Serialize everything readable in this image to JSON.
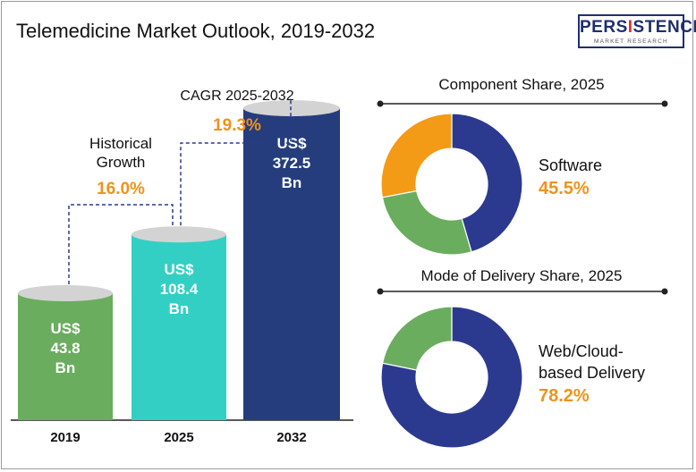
{
  "title": "Telemedicine Market Outlook, 2019-2032",
  "logo": {
    "brand_pre": "PERS",
    "brand_hl": "I",
    "brand_post": "STENCE",
    "tagline": "MARKET RESEARCH"
  },
  "colors": {
    "bar_2019": "#6aad5e",
    "bar_2025": "#33cfc4",
    "bar_2032": "#253d7d",
    "bar_top": "#d3d3d3",
    "accent": "#f0921a",
    "software": "#2b3a8f",
    "donut_green": "#6aad5e",
    "donut_orange": "#f39a16",
    "web": "#2b3a8f"
  },
  "chart_data": [
    {
      "type": "bar",
      "categories": [
        "2019",
        "2025",
        "2032"
      ],
      "values": [
        43.8,
        108.4,
        372.5
      ],
      "value_labels": [
        [
          "US$",
          "43.8",
          "Bn"
        ],
        [
          "US$",
          "108.4",
          "Bn"
        ],
        [
          "US$",
          "372.5",
          "Bn"
        ]
      ],
      "annotations": [
        {
          "lines": [
            "Historical",
            "Growth"
          ],
          "value": "16.0%"
        },
        {
          "lines": [
            "CAGR 2025-2032"
          ],
          "value": "19.3%"
        }
      ]
    },
    {
      "type": "pie",
      "title": "Component Share, 2025",
      "slices": [
        {
          "value": 45.5,
          "color": "#2b3a8f"
        },
        {
          "value": 26.5,
          "color": "#6aad5e"
        },
        {
          "value": 28.0,
          "color": "#f39a16"
        }
      ],
      "label_lines": [
        "Software"
      ],
      "label_value": "45.5%"
    },
    {
      "type": "pie",
      "title": "Mode of Delivery Share, 2025",
      "slices": [
        {
          "value": 78.2,
          "color": "#2b3a8f"
        },
        {
          "value": 21.8,
          "color": "#6aad5e"
        }
      ],
      "label_lines": [
        "Web/Cloud-",
        "based Delivery"
      ],
      "label_value": "78.2%"
    }
  ]
}
